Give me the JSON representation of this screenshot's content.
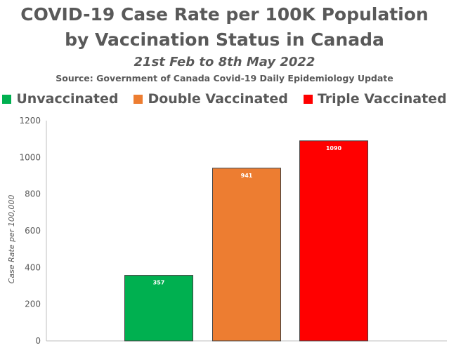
{
  "chart_data": {
    "type": "bar",
    "title_line1": "COVID-19 Case Rate per 100K Population",
    "title_line2": "by Vaccination Status in Canada",
    "subtitle": "21st Feb to 8th May 2022",
    "source": "Source: Government of Canada Covid-19 Daily Epidemiology Update",
    "ylabel": "Case Rate per 100,000",
    "xlabel": "",
    "ylim": [
      0,
      1200
    ],
    "yticks": [
      0,
      200,
      400,
      600,
      800,
      1000,
      1200
    ],
    "legend_position": "top",
    "grid": false,
    "series": [
      {
        "name": "Unvaccinated",
        "value": 357,
        "label": "357",
        "color": "#00B050"
      },
      {
        "name": "Double Vaccinated",
        "value": 941,
        "label": "941",
        "color": "#ED7D31"
      },
      {
        "name": "Triple Vaccinated",
        "value": 1090,
        "label": "1090",
        "color": "#FF0000"
      }
    ]
  }
}
